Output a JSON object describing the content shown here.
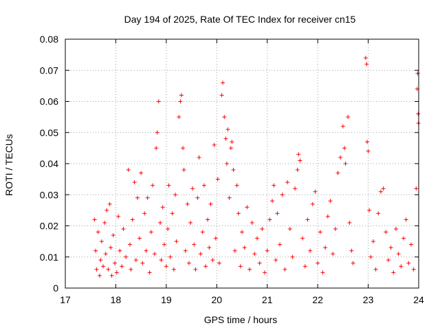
{
  "chart_data": {
    "type": "scatter",
    "title": "Day 194 of 2025, Rate Of TEC Index for receiver cn15",
    "xlabel": "GPS time / hours",
    "ylabel": "ROTI / TECUs",
    "xlim": [
      17,
      24
    ],
    "ylim": [
      0,
      0.08
    ],
    "x_ticks": [
      17,
      18,
      19,
      20,
      21,
      22,
      23,
      24
    ],
    "y_ticks": [
      0,
      0.01,
      0.02,
      0.03,
      0.04,
      0.05,
      0.06,
      0.07,
      0.08
    ],
    "x_tick_labels": [
      "17",
      "18",
      "19",
      "20",
      "21",
      "22",
      "23",
      "24"
    ],
    "y_tick_labels": [
      "0",
      "0.01",
      "0.02",
      "0.03",
      "0.04",
      "0.05",
      "0.06",
      "0.07",
      "0.08"
    ],
    "grid": true,
    "marker": "+",
    "color": "#ff0000",
    "series": [
      {
        "name": "ROTI",
        "points": [
          [
            17.58,
            0.022
          ],
          [
            17.6,
            0.012
          ],
          [
            17.62,
            0.006
          ],
          [
            17.65,
            0.018
          ],
          [
            17.68,
            0.004
          ],
          [
            17.7,
            0.009
          ],
          [
            17.72,
            0.015
          ],
          [
            17.75,
            0.007
          ],
          [
            17.78,
            0.021
          ],
          [
            17.8,
            0.011
          ],
          [
            17.82,
            0.025
          ],
          [
            17.85,
            0.006
          ],
          [
            17.88,
            0.027
          ],
          [
            17.9,
            0.013
          ],
          [
            17.92,
            0.004
          ],
          [
            17.95,
            0.017
          ],
          [
            17.98,
            0.008
          ],
          [
            18.02,
            0.005
          ],
          [
            18.05,
            0.023
          ],
          [
            18.08,
            0.012
          ],
          [
            18.12,
            0.007
          ],
          [
            18.15,
            0.019
          ],
          [
            18.2,
            0.01
          ],
          [
            18.25,
            0.038
          ],
          [
            18.28,
            0.014
          ],
          [
            18.3,
            0.006
          ],
          [
            18.33,
            0.022
          ],
          [
            18.37,
            0.034
          ],
          [
            18.4,
            0.009
          ],
          [
            18.43,
            0.029
          ],
          [
            18.47,
            0.016
          ],
          [
            18.5,
            0.037
          ],
          [
            18.53,
            0.008
          ],
          [
            18.57,
            0.024
          ],
          [
            18.6,
            0.012
          ],
          [
            18.63,
            0.029
          ],
          [
            18.67,
            0.005
          ],
          [
            18.7,
            0.018
          ],
          [
            18.73,
            0.033
          ],
          [
            18.77,
            0.011
          ],
          [
            18.8,
            0.045
          ],
          [
            18.82,
            0.05
          ],
          [
            18.85,
            0.06
          ],
          [
            18.88,
            0.021
          ],
          [
            18.9,
            0.009
          ],
          [
            18.93,
            0.026
          ],
          [
            18.96,
            0.014
          ],
          [
            19.0,
            0.007
          ],
          [
            19.03,
            0.019
          ],
          [
            19.05,
            0.033
          ],
          [
            19.08,
            0.01
          ],
          [
            19.12,
            0.024
          ],
          [
            19.15,
            0.006
          ],
          [
            19.18,
            0.03
          ],
          [
            19.2,
            0.015
          ],
          [
            19.25,
            0.055
          ],
          [
            19.28,
            0.06
          ],
          [
            19.3,
            0.062
          ],
          [
            19.33,
            0.045
          ],
          [
            19.35,
            0.038
          ],
          [
            19.38,
            0.012
          ],
          [
            19.42,
            0.027
          ],
          [
            19.45,
            0.008
          ],
          [
            19.48,
            0.021
          ],
          [
            19.52,
            0.032
          ],
          [
            19.55,
            0.014
          ],
          [
            19.58,
            0.006
          ],
          [
            19.62,
            0.029
          ],
          [
            19.65,
            0.042
          ],
          [
            19.68,
            0.011
          ],
          [
            19.72,
            0.018
          ],
          [
            19.75,
            0.033
          ],
          [
            19.78,
            0.007
          ],
          [
            19.82,
            0.022
          ],
          [
            19.85,
            0.013
          ],
          [
            19.88,
            0.027
          ],
          [
            19.92,
            0.009
          ],
          [
            19.95,
            0.046
          ],
          [
            19.98,
            0.016
          ],
          [
            20.02,
            0.035
          ],
          [
            20.05,
            0.008
          ],
          [
            20.1,
            0.062
          ],
          [
            20.12,
            0.066
          ],
          [
            20.15,
            0.055
          ],
          [
            20.18,
            0.048
          ],
          [
            20.2,
            0.04
          ],
          [
            20.22,
            0.051
          ],
          [
            20.25,
            0.029
          ],
          [
            20.28,
            0.045
          ],
          [
            20.3,
            0.047
          ],
          [
            20.33,
            0.038
          ],
          [
            20.36,
            0.012
          ],
          [
            20.4,
            0.033
          ],
          [
            20.43,
            0.024
          ],
          [
            20.47,
            0.007
          ],
          [
            20.5,
            0.018
          ],
          [
            20.55,
            0.013
          ],
          [
            20.6,
            0.026
          ],
          [
            20.65,
            0.006
          ],
          [
            20.7,
            0.021
          ],
          [
            20.75,
            0.011
          ],
          [
            20.8,
            0.016
          ],
          [
            20.85,
            0.008
          ],
          [
            20.9,
            0.019
          ],
          [
            20.95,
            0.005
          ],
          [
            21.0,
            0.012
          ],
          [
            21.05,
            0.022
          ],
          [
            21.1,
            0.028
          ],
          [
            21.13,
            0.033
          ],
          [
            21.17,
            0.009
          ],
          [
            21.2,
            0.024
          ],
          [
            21.25,
            0.014
          ],
          [
            21.3,
            0.03
          ],
          [
            21.35,
            0.006
          ],
          [
            21.4,
            0.034
          ],
          [
            21.45,
            0.019
          ],
          [
            21.5,
            0.01
          ],
          [
            21.55,
            0.032
          ],
          [
            21.6,
            0.038
          ],
          [
            21.62,
            0.043
          ],
          [
            21.65,
            0.041
          ],
          [
            21.7,
            0.016
          ],
          [
            21.75,
            0.007
          ],
          [
            21.8,
            0.022
          ],
          [
            21.85,
            0.012
          ],
          [
            21.9,
            0.027
          ],
          [
            21.95,
            0.031
          ],
          [
            22.0,
            0.008
          ],
          [
            22.05,
            0.018
          ],
          [
            22.1,
            0.005
          ],
          [
            22.15,
            0.013
          ],
          [
            22.2,
            0.023
          ],
          [
            22.25,
            0.028
          ],
          [
            22.3,
            0.011
          ],
          [
            22.35,
            0.019
          ],
          [
            22.4,
            0.037
          ],
          [
            22.45,
            0.042
          ],
          [
            22.5,
            0.052
          ],
          [
            22.53,
            0.045
          ],
          [
            22.55,
            0.04
          ],
          [
            22.6,
            0.055
          ],
          [
            22.63,
            0.021
          ],
          [
            22.67,
            0.012
          ],
          [
            22.7,
            0.008
          ],
          [
            22.95,
            0.074
          ],
          [
            22.97,
            0.072
          ],
          [
            22.98,
            0.047
          ],
          [
            23.0,
            0.044
          ],
          [
            23.02,
            0.025
          ],
          [
            23.05,
            0.01
          ],
          [
            23.1,
            0.015
          ],
          [
            23.15,
            0.006
          ],
          [
            23.2,
            0.024
          ],
          [
            23.25,
            0.031
          ],
          [
            23.3,
            0.032
          ],
          [
            23.35,
            0.018
          ],
          [
            23.4,
            0.009
          ],
          [
            23.45,
            0.013
          ],
          [
            23.5,
            0.005
          ],
          [
            23.55,
            0.019
          ],
          [
            23.6,
            0.011
          ],
          [
            23.65,
            0.007
          ],
          [
            23.7,
            0.016
          ],
          [
            23.75,
            0.022
          ],
          [
            23.8,
            0.008
          ],
          [
            23.85,
            0.014
          ],
          [
            23.9,
            0.006
          ],
          [
            23.95,
            0.032
          ],
          [
            23.97,
            0.064
          ],
          [
            23.98,
            0.069
          ],
          [
            23.99,
            0.056
          ],
          [
            23.995,
            0.053
          ]
        ]
      }
    ]
  }
}
